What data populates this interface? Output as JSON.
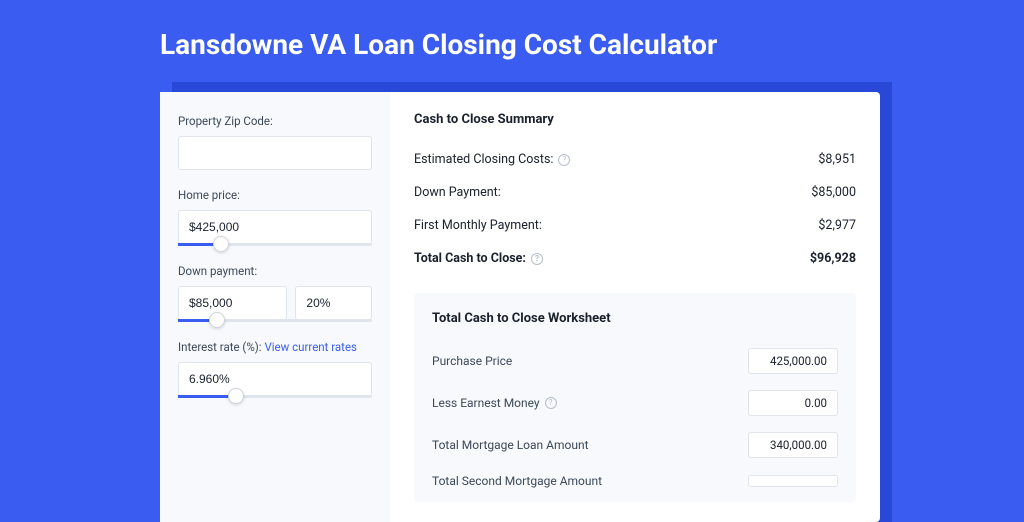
{
  "colors": {
    "page_bg": "#3a5cf0",
    "shadow_block": "#2948d8",
    "card_bg": "#ffffff",
    "panel_bg": "#f7f9fc",
    "border": "#e0e4ec",
    "text_primary": "#1a202c",
    "text_secondary": "#3c4858",
    "link": "#3a5cf0",
    "slider_fill": "#3a5cf0",
    "help_icon": "#b8bec9"
  },
  "page_title": "Lansdowne VA Loan Closing Cost Calculator",
  "sidebar": {
    "zip": {
      "label": "Property Zip Code:",
      "value": ""
    },
    "home_price": {
      "label": "Home price:",
      "value": "$425,000",
      "slider_pct": 22
    },
    "down_payment": {
      "label": "Down payment:",
      "value": "$85,000",
      "pct_value": "20%",
      "slider_pct": 20
    },
    "interest_rate": {
      "label": "Interest rate (%):",
      "link_text": "View current rates",
      "value": "6.960%",
      "slider_pct": 30
    }
  },
  "summary": {
    "title": "Cash to Close Summary",
    "rows": [
      {
        "label": "Estimated Closing Costs:",
        "help": true,
        "value": "$8,951",
        "bold": false
      },
      {
        "label": "Down Payment:",
        "help": false,
        "value": "$85,000",
        "bold": false
      },
      {
        "label": "First Monthly Payment:",
        "help": false,
        "value": "$2,977",
        "bold": false
      },
      {
        "label": "Total Cash to Close:",
        "help": true,
        "value": "$96,928",
        "bold": true
      }
    ]
  },
  "worksheet": {
    "title": "Total Cash to Close Worksheet",
    "rows": [
      {
        "label": "Purchase Price",
        "help": false,
        "value": "425,000.00"
      },
      {
        "label": "Less Earnest Money",
        "help": true,
        "value": "0.00"
      },
      {
        "label": "Total Mortgage Loan Amount",
        "help": false,
        "value": "340,000.00"
      },
      {
        "label": "Total Second Mortgage Amount",
        "help": false,
        "value": ""
      }
    ]
  }
}
